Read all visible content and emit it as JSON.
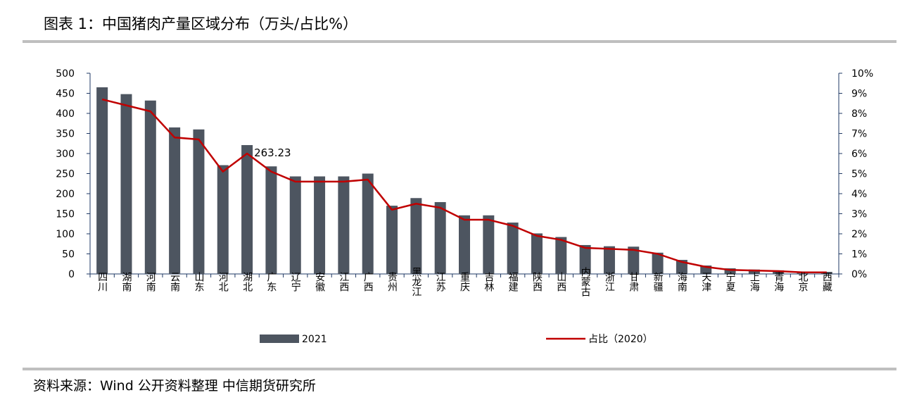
{
  "title": "图表 1：中国猪肉产量区域分布（万头/占比%）",
  "source": "资料来源：Wind 公开资料整理 中信期货研究所",
  "colors": {
    "bar": "#4d5560",
    "line": "#c00000",
    "axis": "#1f3864",
    "rule": "#bfbfbf"
  },
  "chart_data": {
    "type": "bar",
    "categories": [
      "四川",
      "湖南",
      "河南",
      "云南",
      "山东",
      "河北",
      "湖北",
      "广东",
      "辽宁",
      "安徽",
      "江西",
      "广西",
      "贵州",
      "黑龙江",
      "江苏",
      "重庆",
      "吉林",
      "福建",
      "陕西",
      "山西",
      "内蒙古",
      "浙江",
      "甘肃",
      "新疆",
      "海南",
      "天津",
      "宁夏",
      "上海",
      "青海",
      "北京",
      "西藏"
    ],
    "series": [
      {
        "name": "2021",
        "kind": "bar",
        "axis": "left",
        "values": [
          465,
          448,
          432,
          365,
          360,
          271,
          321,
          268,
          243,
          243,
          243,
          250,
          170,
          189,
          179,
          146,
          146,
          128,
          101,
          92,
          72,
          69,
          68,
          53,
          35,
          21,
          14,
          11,
          9,
          6,
          5
        ]
      },
      {
        "name": "占比（2020）",
        "kind": "line",
        "axis": "right",
        "values": [
          8.7,
          8.4,
          8.1,
          6.8,
          6.7,
          5.1,
          6.0,
          5.1,
          4.6,
          4.6,
          4.6,
          4.7,
          3.2,
          3.5,
          3.3,
          2.7,
          2.7,
          2.4,
          1.9,
          1.7,
          1.3,
          1.25,
          1.2,
          1.0,
          0.6,
          0.35,
          0.2,
          0.17,
          0.14,
          0.08,
          0.08
        ]
      }
    ],
    "annotations": [
      {
        "category": "湖北",
        "text": "263.23"
      }
    ],
    "y_left": {
      "min": 0,
      "max": 500,
      "ticks": [
        "0",
        "50",
        "100",
        "150",
        "200",
        "250",
        "300",
        "350",
        "400",
        "450",
        "500"
      ]
    },
    "y_right": {
      "min": 0,
      "max": 10,
      "ticks": [
        "0%",
        "1%",
        "2%",
        "3%",
        "4%",
        "5%",
        "6%",
        "7%",
        "8%",
        "9%",
        "10%"
      ]
    },
    "grid": false,
    "legend": {
      "position": "bottom",
      "items": [
        "2021",
        "占比（2020）"
      ]
    }
  }
}
